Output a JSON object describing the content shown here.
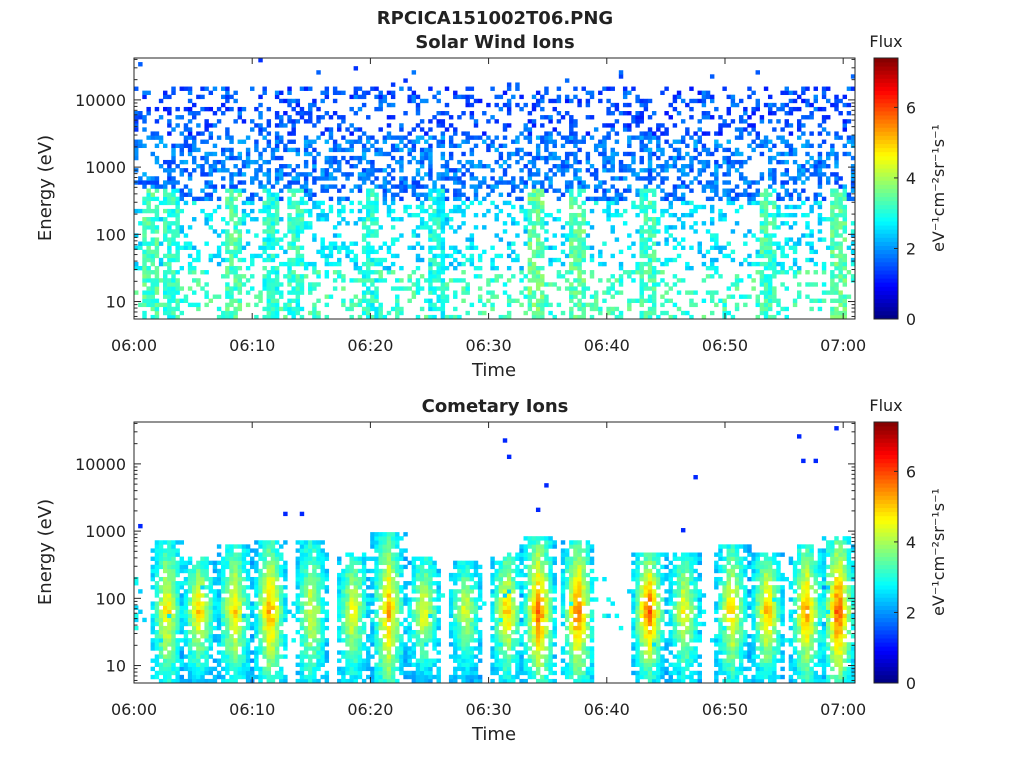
{
  "figure_title": "RPCICA151002T06.PNG",
  "chart_data": [
    {
      "type": "heatmap",
      "title": "Solar Wind Ions",
      "xlabel": "Time",
      "ylabel": "Energy (eV)",
      "x_tick_labels": [
        "06:00",
        "06:10",
        "06:20",
        "06:30",
        "06:40",
        "06:50",
        "07:00"
      ],
      "x_range_minutes": [
        0,
        61
      ],
      "y_scale": "log",
      "y_range": [
        5.5,
        42000
      ],
      "y_tick_labels": [
        "10",
        "100",
        "1000",
        "10000"
      ],
      "y_tick_values": [
        10,
        100,
        1000,
        10000
      ],
      "colorbar": {
        "title": "Flux",
        "label": "eV⁻¹cm⁻²sr⁻¹s⁻¹",
        "range": [
          0,
          7.4
        ],
        "tick_labels": [
          "0",
          "2",
          "4",
          "6"
        ],
        "tick_values": [
          0,
          2,
          4,
          6
        ],
        "colormap": "jet"
      },
      "background_flux": {
        "below_30eV": 3.2,
        "30_to_300eV": 2.6,
        "300_to_3000eV": 1.8,
        "above_3000eV": 1.5
      },
      "bursts": [
        {
          "time_min": 1.5,
          "flux": 3.3
        },
        {
          "time_min": 3.0,
          "flux": 3.1
        },
        {
          "time_min": 8.5,
          "flux": 3.3
        },
        {
          "time_min": 11.5,
          "flux": 3.0
        },
        {
          "time_min": 13.5,
          "flux": 3.1
        },
        {
          "time_min": 20.0,
          "flux": 3.0
        },
        {
          "time_min": 25.5,
          "flux": 2.9
        },
        {
          "time_min": 34.0,
          "flux": 3.5
        },
        {
          "time_min": 37.5,
          "flux": 3.4
        },
        {
          "time_min": 43.5,
          "flux": 3.2
        },
        {
          "time_min": 53.5,
          "flux": 3.2
        },
        {
          "time_min": 59.5,
          "flux": 3.4
        }
      ]
    },
    {
      "type": "heatmap",
      "title": "Cometary Ions",
      "xlabel": "Time",
      "ylabel": "Energy (eV)",
      "x_tick_labels": [
        "06:00",
        "06:10",
        "06:20",
        "06:30",
        "06:40",
        "06:50",
        "07:00"
      ],
      "x_range_minutes": [
        0,
        61
      ],
      "y_scale": "log",
      "y_range": [
        5.5,
        42000
      ],
      "y_tick_labels": [
        "10",
        "100",
        "1000",
        "10000"
      ],
      "y_tick_values": [
        10,
        100,
        1000,
        10000
      ],
      "colorbar": {
        "title": "Flux",
        "label": "eV⁻¹cm⁻²sr⁻¹s⁻¹",
        "range": [
          0,
          7.4
        ],
        "tick_labels": [
          "0",
          "2",
          "4",
          "6"
        ],
        "tick_values": [
          0,
          2,
          4,
          6
        ],
        "colormap": "jet"
      },
      "bursts": [
        {
          "time_min": 2.8,
          "peak_flux": 5.0,
          "e_top": 700
        },
        {
          "time_min": 5.5,
          "peak_flux": 5.2,
          "e_top": 400
        },
        {
          "time_min": 8.5,
          "peak_flux": 5.2,
          "e_top": 600
        },
        {
          "time_min": 11.5,
          "peak_flux": 5.6,
          "e_top": 700
        },
        {
          "time_min": 15.0,
          "peak_flux": 4.6,
          "e_top": 700
        },
        {
          "time_min": 18.5,
          "peak_flux": 4.8,
          "e_top": 500
        },
        {
          "time_min": 21.5,
          "peak_flux": 5.4,
          "e_top": 1000
        },
        {
          "time_min": 24.5,
          "peak_flux": 4.8,
          "e_top": 400
        },
        {
          "time_min": 28.0,
          "peak_flux": 4.6,
          "e_top": 350
        },
        {
          "time_min": 31.5,
          "peak_flux": 5.2,
          "e_top": 500
        },
        {
          "time_min": 34.2,
          "peak_flux": 6.0,
          "e_top": 800
        },
        {
          "time_min": 37.5,
          "peak_flux": 6.0,
          "e_top": 700
        },
        {
          "time_min": 43.5,
          "peak_flux": 6.2,
          "e_top": 500
        },
        {
          "time_min": 46.5,
          "peak_flux": 4.8,
          "e_top": 500
        },
        {
          "time_min": 50.5,
          "peak_flux": 5.2,
          "e_top": 600
        },
        {
          "time_min": 53.5,
          "peak_flux": 5.4,
          "e_top": 500
        },
        {
          "time_min": 56.8,
          "peak_flux": 5.6,
          "e_top": 600
        },
        {
          "time_min": 59.5,
          "peak_flux": 6.2,
          "e_top": 800
        }
      ]
    }
  ]
}
